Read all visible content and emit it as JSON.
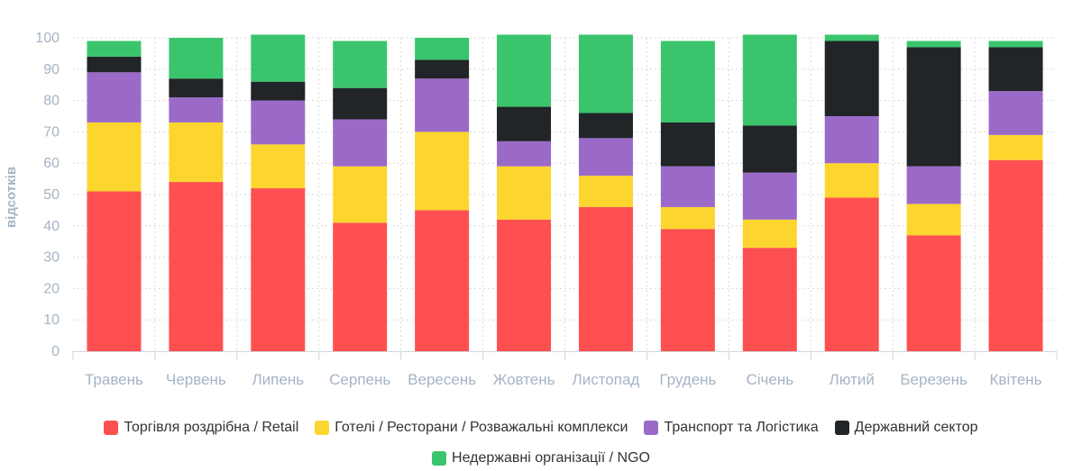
{
  "chart_data": {
    "type": "bar",
    "stacked": true,
    "ylabel": "відсотків",
    "ylim": [
      0,
      100
    ],
    "yticks": [
      0,
      10,
      20,
      30,
      40,
      50,
      60,
      70,
      80,
      90,
      100
    ],
    "grid": true,
    "legend_position": "bottom",
    "categories": [
      "Травень",
      "Червень",
      "Липень",
      "Серпень",
      "Вересень",
      "Жовтень",
      "Листопад",
      "Грудень",
      "Січень",
      "Лютий",
      "Березень",
      "Квітень"
    ],
    "series": [
      {
        "name": "Торгівля роздрібна / Retail",
        "color": "#fe5050",
        "values": [
          51,
          54,
          52,
          41,
          45,
          42,
          46,
          39,
          33,
          49,
          37,
          61
        ]
      },
      {
        "name": "Готелі / Ресторани / Розважальні комплекси",
        "color": "#fdd52f",
        "values": [
          22,
          19,
          14,
          18,
          25,
          17,
          10,
          7,
          9,
          11,
          10,
          8
        ]
      },
      {
        "name": "Транспорт та Логістика",
        "color": "#9b6ac8",
        "values": [
          16,
          8,
          14,
          15,
          17,
          8,
          12,
          13,
          15,
          15,
          12,
          14
        ]
      },
      {
        "name": "Державний сектор",
        "color": "#212527",
        "values": [
          5,
          6,
          6,
          10,
          6,
          11,
          8,
          14,
          15,
          24,
          38,
          14
        ]
      },
      {
        "name": "Недержавні організації / NGO",
        "color": "#3ac56d",
        "values": [
          5,
          13,
          15,
          15,
          7,
          23,
          25,
          26,
          29,
          2,
          2,
          2
        ]
      }
    ]
  }
}
